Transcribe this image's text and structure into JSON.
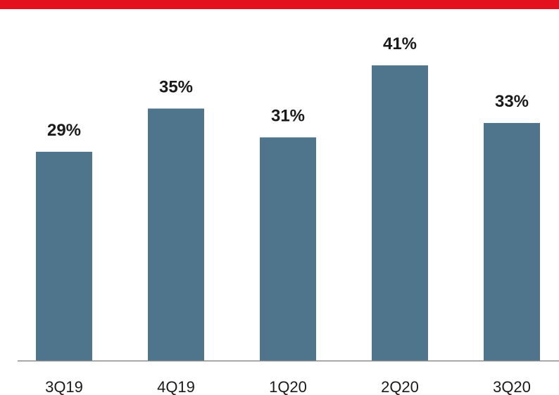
{
  "colors": {
    "accent_bar": "#e3101e",
    "bar_fill": "#4e758c",
    "axis_line": "#888888",
    "text": "#1a1a1a"
  },
  "chart_data": {
    "type": "bar",
    "categories": [
      "3Q19",
      "4Q19",
      "1Q20",
      "2Q20",
      "3Q20"
    ],
    "values": [
      29,
      35,
      31,
      41,
      33
    ],
    "value_labels": [
      "29%",
      "35%",
      "31%",
      "41%",
      "33%"
    ],
    "ylim": [
      0,
      41
    ],
    "grid": false,
    "title": "",
    "xlabel": "",
    "ylabel": ""
  }
}
